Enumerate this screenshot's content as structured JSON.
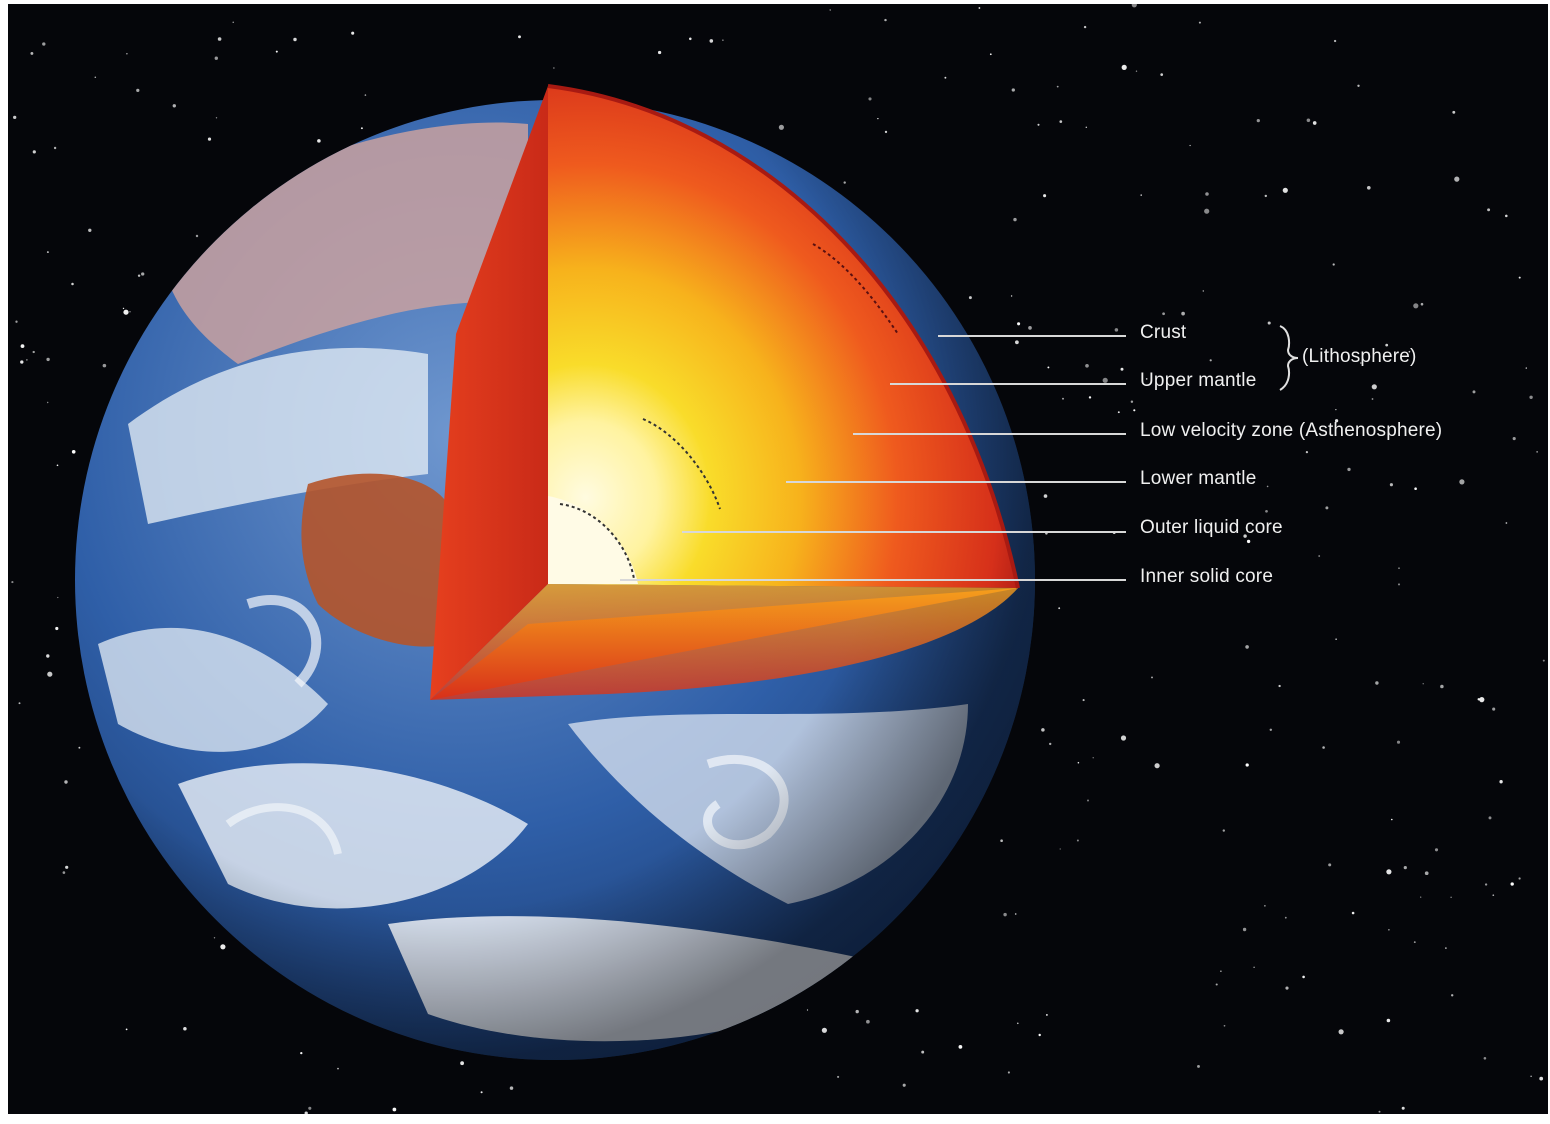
{
  "layers": [
    {
      "id": "crust",
      "label": "Crust"
    },
    {
      "id": "upper-mantle",
      "label": "Upper mantle"
    },
    {
      "id": "low-velocity-zone",
      "label": "Low velocity zone (Asthenosphere)"
    },
    {
      "id": "lower-mantle",
      "label": "Lower mantle"
    },
    {
      "id": "outer-liquid-core",
      "label": "Outer liquid core"
    },
    {
      "id": "inner-solid-core",
      "label": "Inner solid core"
    }
  ],
  "group": {
    "label": "(Lithosphere)",
    "members": [
      "crust",
      "upper-mantle"
    ]
  },
  "colors": {
    "space": "#05060a",
    "ocean": "#2f5fa8",
    "cloud": "#e8eef6",
    "crust": "#c8261c",
    "mantle": "#ef5a1e",
    "outer_core": "#f7b21c",
    "inner_core": "#fff7d0",
    "leader": "#d8d8d8"
  }
}
